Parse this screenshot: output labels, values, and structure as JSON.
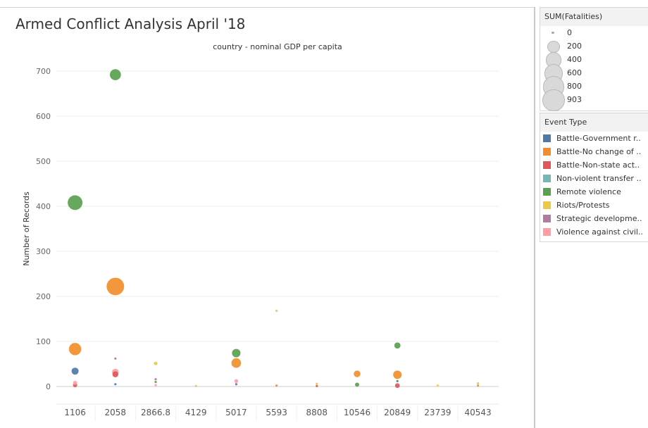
{
  "dashboard": {
    "title": "Armed Conflict Analysis April '18"
  },
  "size_legend": {
    "title": "SUM(Fatalities)",
    "items": [
      {
        "label": "0",
        "value": 0
      },
      {
        "label": "200",
        "value": 200
      },
      {
        "label": "400",
        "value": 400
      },
      {
        "label": "600",
        "value": 600
      },
      {
        "label": "800",
        "value": 800
      },
      {
        "label": "903",
        "value": 903
      }
    ]
  },
  "type_legend": {
    "title": "Event Type",
    "items": [
      {
        "label": "Battle-Government r..",
        "color": "#4e79a7"
      },
      {
        "label": "Battle-No change of ..",
        "color": "#f28e2b"
      },
      {
        "label": "Battle-Non-state act..",
        "color": "#e15759"
      },
      {
        "label": "Non-violent transfer ..",
        "color": "#76b7b2"
      },
      {
        "label": "Remote violence",
        "color": "#59a14f"
      },
      {
        "label": "Riots/Protests",
        "color": "#edc948"
      },
      {
        "label": "Strategic developme..",
        "color": "#b07aa1"
      },
      {
        "label": "Violence against civil..",
        "color": "#ff9da7"
      }
    ]
  },
  "chart_data": {
    "type": "scatter",
    "title": "country - nominal GDP per capita",
    "xlabel": "",
    "ylabel": "Number of Records",
    "categories": [
      "1106",
      "2058",
      "2866.8",
      "4129",
      "5017",
      "5593",
      "8808",
      "10546",
      "20849",
      "23739",
      "40543"
    ],
    "ylim": [
      0,
      720
    ],
    "yticks": [
      0,
      100,
      200,
      300,
      400,
      500,
      600,
      700
    ],
    "grid": true,
    "points": [
      {
        "category": "1106",
        "series": "Remote violence",
        "color": "#59a14f",
        "y": 408,
        "fatalities": 400
      },
      {
        "category": "1106",
        "series": "Battle-No change of ..",
        "color": "#f28e2b",
        "y": 83,
        "fatalities": 260
      },
      {
        "category": "1106",
        "series": "Battle-Government r..",
        "color": "#4e79a7",
        "y": 34,
        "fatalities": 60
      },
      {
        "category": "1106",
        "series": "Violence against civil..",
        "color": "#ff9da7",
        "y": 8,
        "fatalities": 8
      },
      {
        "category": "1106",
        "series": "Battle-Non-state act..",
        "color": "#e15759",
        "y": 3,
        "fatalities": 10
      },
      {
        "category": "2058",
        "series": "Remote violence",
        "color": "#59a14f",
        "y": 692,
        "fatalities": 200
      },
      {
        "category": "2058",
        "series": "Battle-No change of ..",
        "color": "#f28e2b",
        "y": 222,
        "fatalities": 600
      },
      {
        "category": "2058",
        "series": "Strategic developme..",
        "color": "#b07aa1",
        "y": 62,
        "fatalities": 0
      },
      {
        "category": "2058",
        "series": "Violence against civil..",
        "color": "#ff9da7",
        "y": 32,
        "fatalities": 50
      },
      {
        "category": "2058",
        "series": "Battle-Non-state act..",
        "color": "#e15759",
        "y": 27,
        "fatalities": 35
      },
      {
        "category": "2058",
        "series": "Battle-Government r..",
        "color": "#4e79a7",
        "y": 5,
        "fatalities": 0
      },
      {
        "category": "2866.8",
        "series": "Riots/Protests",
        "color": "#edc948",
        "y": 51,
        "fatalities": 4
      },
      {
        "category": "2866.8",
        "series": "Strategic developme..",
        "color": "#b07aa1",
        "y": 16,
        "fatalities": 0
      },
      {
        "category": "2866.8",
        "series": "Remote violence",
        "color": "#59a14f",
        "y": 10,
        "fatalities": 0
      },
      {
        "category": "2866.8",
        "series": "Violence against civil..",
        "color": "#ff9da7",
        "y": 3,
        "fatalities": 0
      },
      {
        "category": "4129",
        "series": "Riots/Protests",
        "color": "#edc948",
        "y": 1,
        "fatalities": 0
      },
      {
        "category": "5017",
        "series": "Remote violence",
        "color": "#59a14f",
        "y": 74,
        "fatalities": 100
      },
      {
        "category": "5017",
        "series": "Battle-No change of ..",
        "color": "#f28e2b",
        "y": 52,
        "fatalities": 140
      },
      {
        "category": "5017",
        "series": "Violence against civil..",
        "color": "#ff9da7",
        "y": 12,
        "fatalities": 6
      },
      {
        "category": "5017",
        "series": "Battle-Government r..",
        "color": "#4e79a7",
        "y": 5,
        "fatalities": 0
      },
      {
        "category": "5593",
        "series": "Riots/Protests",
        "color": "#edc948",
        "y": 168,
        "fatalities": 0
      },
      {
        "category": "5593",
        "series": "Battle-No change of ..",
        "color": "#f28e2b",
        "y": 2,
        "fatalities": 0
      },
      {
        "category": "8808",
        "series": "Riots/Protests",
        "color": "#edc948",
        "y": 6,
        "fatalities": 0
      },
      {
        "category": "8808",
        "series": "Battle-Non-state act..",
        "color": "#e15759",
        "y": 1,
        "fatalities": 0
      },
      {
        "category": "10546",
        "series": "Battle-No change of ..",
        "color": "#f28e2b",
        "y": 28,
        "fatalities": 50
      },
      {
        "category": "10546",
        "series": "Remote violence",
        "color": "#59a14f",
        "y": 4,
        "fatalities": 10
      },
      {
        "category": "20849",
        "series": "Remote violence",
        "color": "#59a14f",
        "y": 91,
        "fatalities": 40
      },
      {
        "category": "20849",
        "series": "Battle-No change of ..",
        "color": "#f28e2b",
        "y": 26,
        "fatalities": 100
      },
      {
        "category": "20849",
        "series": "Battle-Government r..",
        "color": "#4e79a7",
        "y": 12,
        "fatalities": 0
      },
      {
        "category": "20849",
        "series": "Battle-Non-state act..",
        "color": "#e15759",
        "y": 2,
        "fatalities": 15
      },
      {
        "category": "23739",
        "series": "Riots/Protests",
        "color": "#edc948",
        "y": 2,
        "fatalities": 0
      },
      {
        "category": "40543",
        "series": "Riots/Protests",
        "color": "#edc948",
        "y": 7,
        "fatalities": 0
      },
      {
        "category": "40543",
        "series": "Battle-No change of ..",
        "color": "#f28e2b",
        "y": 2,
        "fatalities": 0
      }
    ]
  }
}
